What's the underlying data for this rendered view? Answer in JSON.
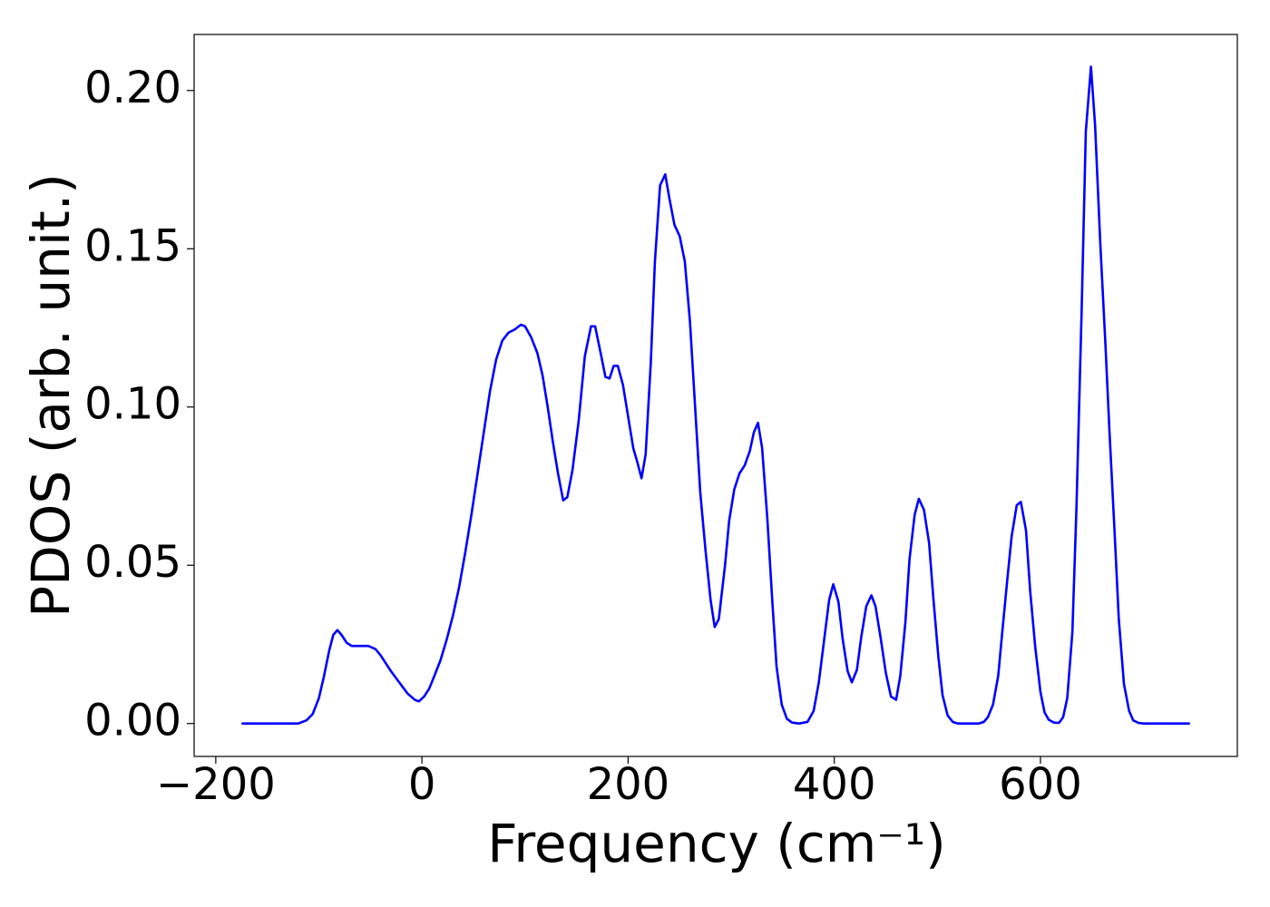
{
  "chart_data": {
    "type": "line",
    "xlabel": "Frequency (cm⁻¹)",
    "ylabel": "PDOS (arb. unit.)",
    "x": [
      -175,
      -120,
      -112,
      -106,
      -100,
      -95,
      -90,
      -86,
      -82,
      -78,
      -73,
      -68,
      -60,
      -52,
      -45,
      -40,
      -35,
      -30,
      -22,
      -14,
      -7,
      -3,
      2,
      7,
      12,
      18,
      24,
      30,
      36,
      42,
      48,
      54,
      60,
      66,
      72,
      78,
      84,
      90,
      96,
      100,
      106,
      112,
      117,
      122,
      127,
      132,
      137,
      141,
      146,
      152,
      158,
      164,
      168,
      174,
      178,
      182,
      186,
      190,
      195,
      200,
      205,
      209,
      213,
      217,
      222,
      226,
      231,
      236,
      240,
      245,
      250,
      255,
      260,
      265,
      270,
      275,
      280,
      284,
      288,
      294,
      298,
      303,
      308,
      313,
      318,
      322,
      326,
      330,
      335,
      340,
      344,
      349,
      354,
      359,
      366,
      374,
      380,
      385,
      390,
      395,
      399,
      404,
      408,
      413,
      417,
      422,
      426,
      431,
      436,
      440,
      445,
      450,
      455,
      460,
      464,
      469,
      473,
      478,
      482,
      487,
      492,
      496,
      501,
      505,
      510,
      515,
      520,
      540,
      545,
      549,
      554,
      559,
      563,
      568,
      572,
      577,
      581,
      586,
      590,
      595,
      600,
      604,
      608,
      613,
      618,
      622,
      626,
      631,
      635,
      640,
      644,
      649,
      653,
      658,
      663,
      667,
      672,
      676,
      681,
      686,
      690,
      695,
      700,
      745
    ],
    "series": [
      {
        "name": "PDOS",
        "color": "#0000ff",
        "values": [
          0,
          0,
          0.001,
          0.003,
          0.008,
          0.015,
          0.023,
          0.028,
          0.0295,
          0.028,
          0.0255,
          0.0245,
          0.0245,
          0.0245,
          0.0235,
          0.0215,
          0.019,
          0.0165,
          0.013,
          0.0095,
          0.0075,
          0.007,
          0.0085,
          0.011,
          0.015,
          0.02,
          0.0265,
          0.034,
          0.043,
          0.054,
          0.066,
          0.079,
          0.092,
          0.105,
          0.115,
          0.121,
          0.1235,
          0.1245,
          0.126,
          0.1255,
          0.122,
          0.117,
          0.11,
          0.1,
          0.089,
          0.079,
          0.0705,
          0.0715,
          0.08,
          0.0955,
          0.116,
          0.1255,
          0.1255,
          0.116,
          0.1095,
          0.109,
          0.113,
          0.113,
          0.107,
          0.097,
          0.087,
          0.0825,
          0.0775,
          0.085,
          0.114,
          0.146,
          0.17,
          0.1735,
          0.166,
          0.1575,
          0.154,
          0.146,
          0.127,
          0.1,
          0.073,
          0.055,
          0.039,
          0.0305,
          0.033,
          0.05,
          0.064,
          0.074,
          0.079,
          0.0815,
          0.086,
          0.092,
          0.095,
          0.087,
          0.065,
          0.038,
          0.018,
          0.006,
          0.0015,
          0.0003,
          0,
          0.0005,
          0.004,
          0.013,
          0.026,
          0.039,
          0.044,
          0.0385,
          0.027,
          0.0165,
          0.013,
          0.017,
          0.027,
          0.037,
          0.0405,
          0.037,
          0.027,
          0.016,
          0.0085,
          0.0075,
          0.015,
          0.032,
          0.052,
          0.066,
          0.071,
          0.0675,
          0.057,
          0.04,
          0.021,
          0.009,
          0.0025,
          0.0005,
          0,
          0,
          0.0005,
          0.002,
          0.006,
          0.015,
          0.029,
          0.046,
          0.059,
          0.069,
          0.07,
          0.061,
          0.042,
          0.024,
          0.01,
          0.0035,
          0.0012,
          0.0003,
          0.0002,
          0.002,
          0.008,
          0.029,
          0.069,
          0.131,
          0.187,
          0.2075,
          0.189,
          0.152,
          0.12,
          0.092,
          0.06,
          0.033,
          0.0125,
          0.004,
          0.001,
          0.0002,
          0,
          0
        ]
      }
    ],
    "xlim": [
      -221,
      791
    ],
    "ylim": [
      -0.0104,
      0.2177
    ],
    "xticks": [
      {
        "value": -200,
        "label": "−200"
      },
      0,
      200,
      400,
      600
    ],
    "yticks": [
      {
        "value": 0,
        "label": "0.00"
      },
      {
        "value": 0.05,
        "label": "0.05"
      },
      {
        "value": 0.1,
        "label": "0.10"
      },
      {
        "value": 0.15,
        "label": "0.15"
      },
      {
        "value": 0.2,
        "label": "0.20"
      }
    ],
    "grid": false
  }
}
